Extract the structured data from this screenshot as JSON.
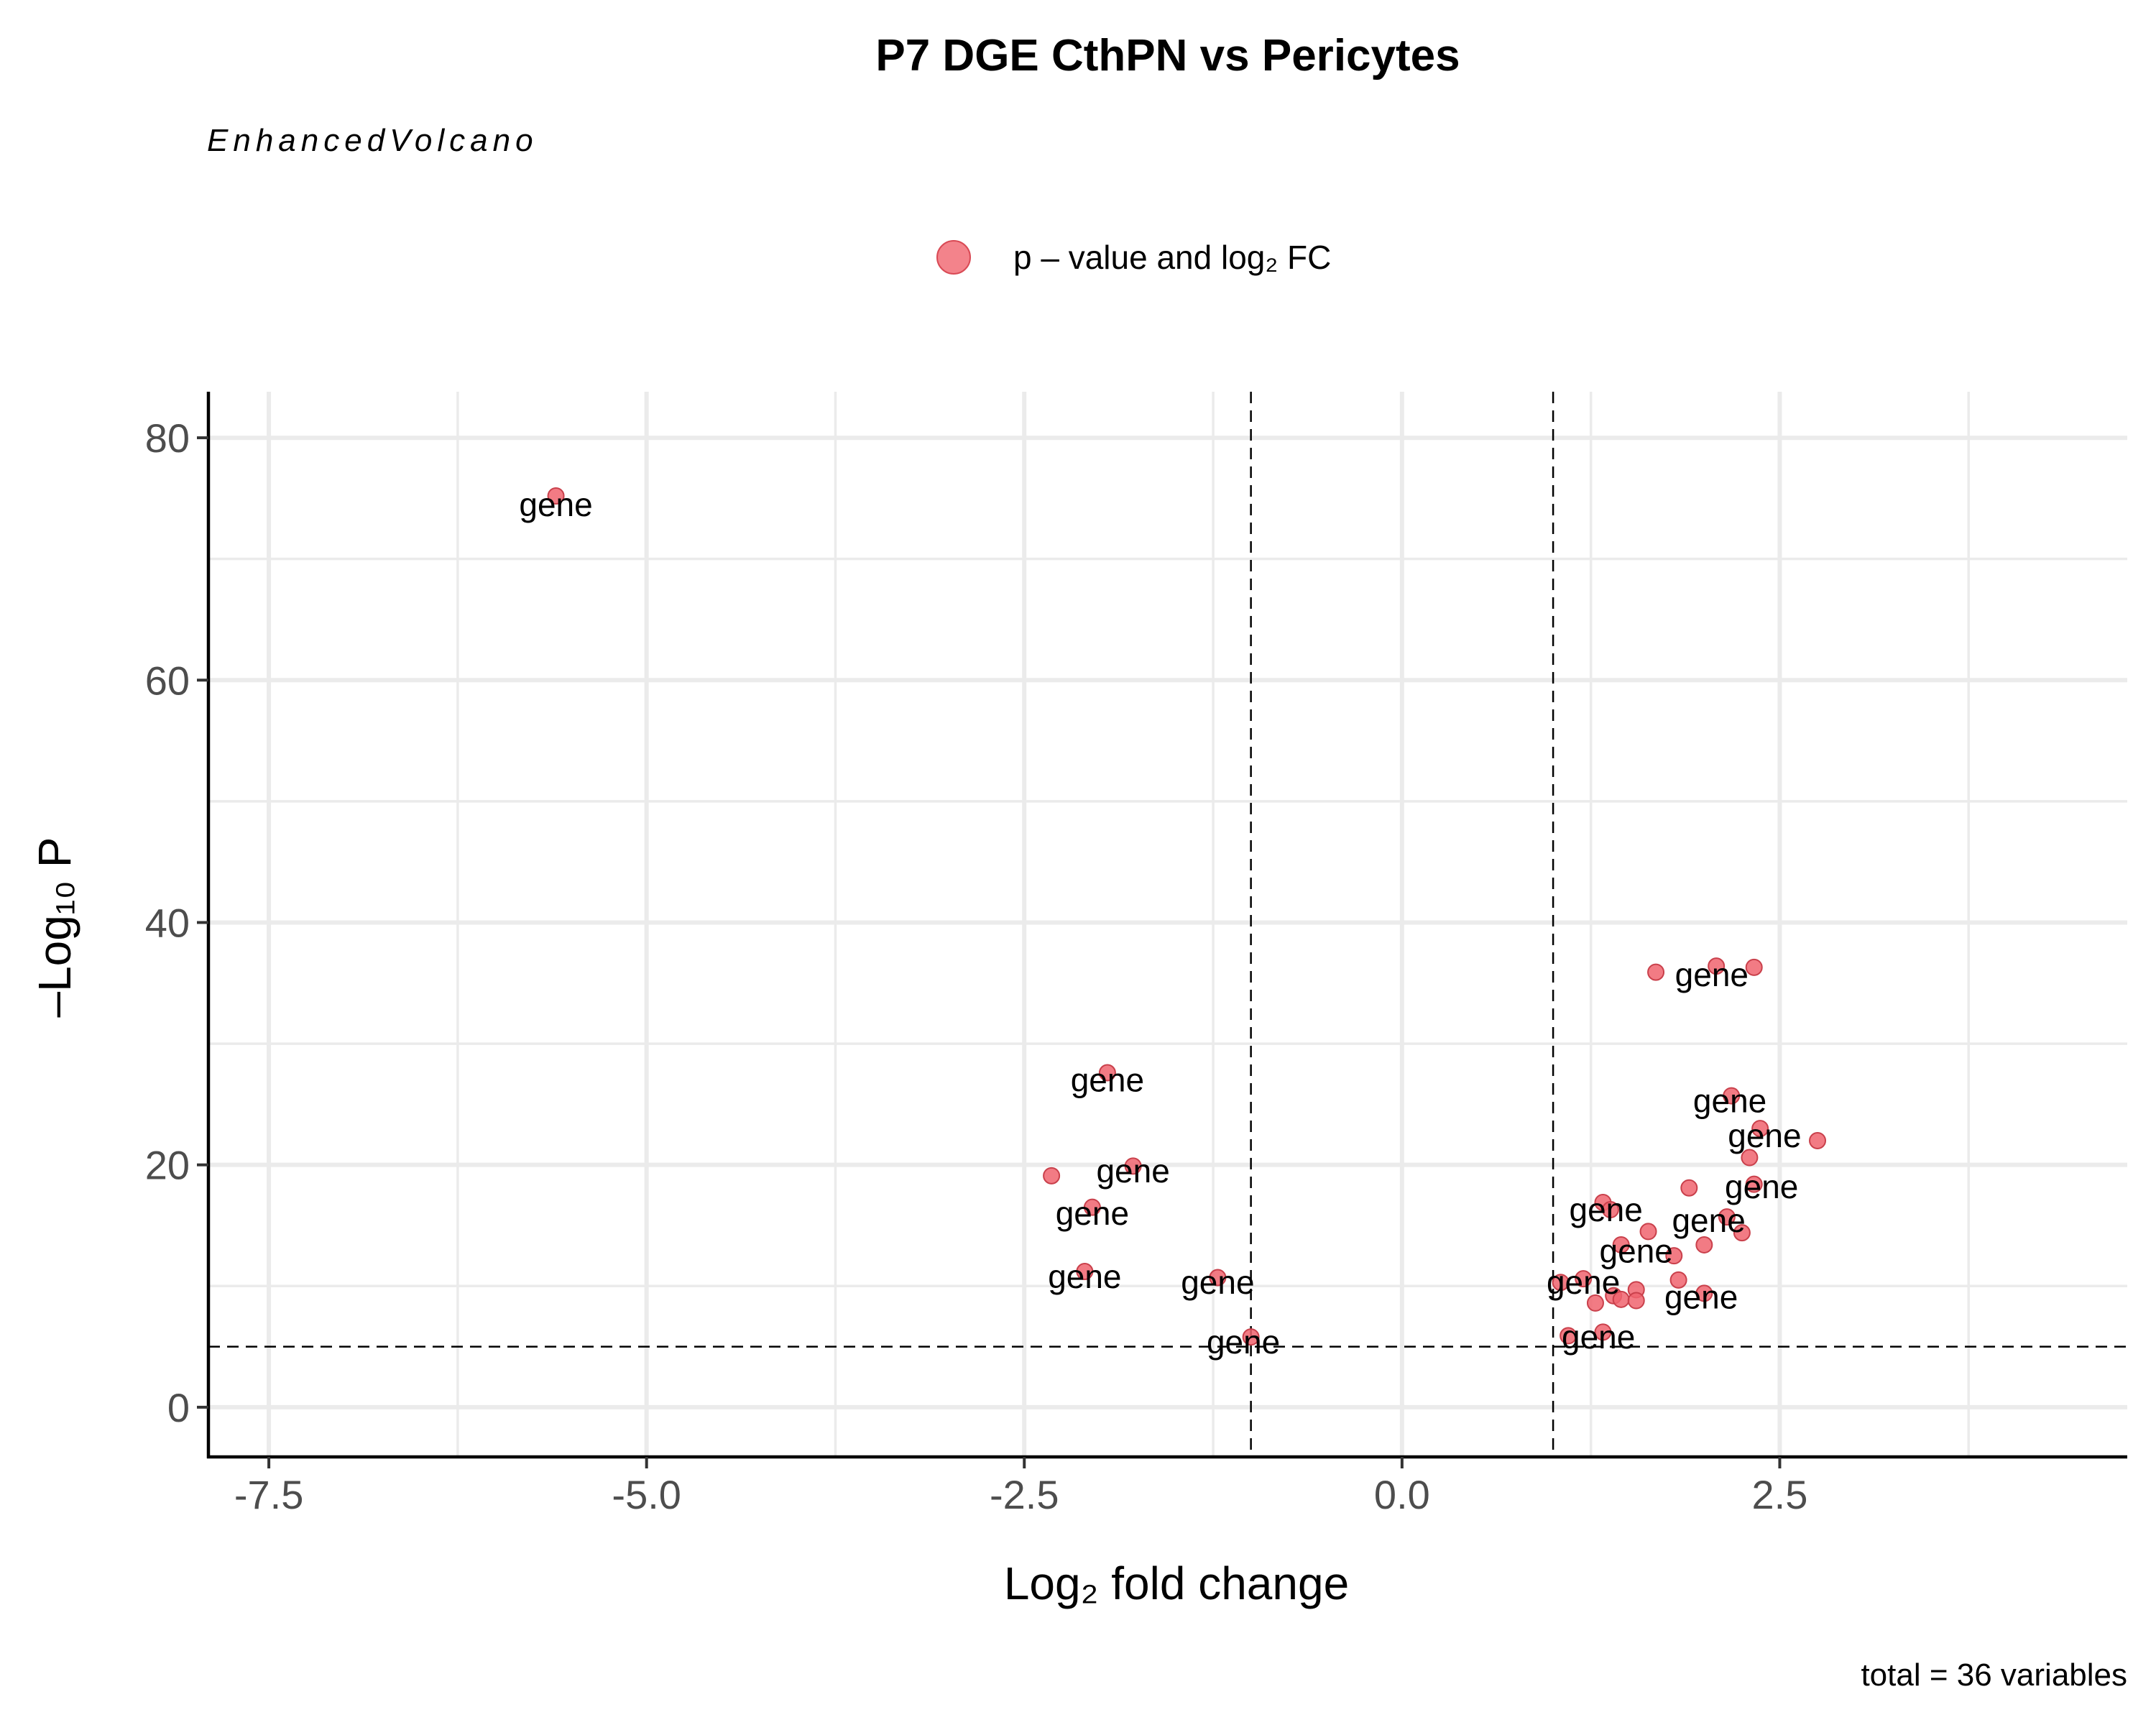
{
  "chart_data": {
    "type": "scatter",
    "title": "P7 DGE CthPN vs Pericytes",
    "subtitle": "EnhancedVolcano",
    "legend": {
      "position": "top",
      "entries": [
        {
          "label": "p – value and log₂ FC",
          "color": "#F0646E"
        }
      ]
    },
    "xlabel": "Log₂ fold change",
    "ylabel": "–Log₁₀ P",
    "xlim": [
      -7.9,
      4.8
    ],
    "ylim": [
      -4.1,
      83.8
    ],
    "xticks": [
      -7.5,
      -5.0,
      -2.5,
      0.0,
      2.5
    ],
    "xtick_labels": [
      "-7.5",
      "-5.0",
      "-2.5",
      "0.0",
      "2.5"
    ],
    "yticks": [
      0,
      20,
      40,
      60,
      80
    ],
    "ytick_labels": [
      "0",
      "20",
      "40",
      "60",
      "80"
    ],
    "grid": true,
    "cutoffs": {
      "fold_change": [
        -1,
        1
      ],
      "p_value_log10": 5
    },
    "point_color": "#F0646E",
    "points": [
      {
        "x": -5.6,
        "y": 75.2
      },
      {
        "x": -1.95,
        "y": 27.6
      },
      {
        "x": -1.78,
        "y": 19.9
      },
      {
        "x": -2.32,
        "y": 19.1
      },
      {
        "x": -2.05,
        "y": 16.5
      },
      {
        "x": -2.1,
        "y": 11.2
      },
      {
        "x": -1.22,
        "y": 10.7
      },
      {
        "x": -1.0,
        "y": 5.8
      },
      {
        "x": 1.68,
        "y": 35.9
      },
      {
        "x": 2.08,
        "y": 36.4
      },
      {
        "x": 2.33,
        "y": 36.3
      },
      {
        "x": 2.18,
        "y": 25.7
      },
      {
        "x": 2.37,
        "y": 23.0
      },
      {
        "x": 2.75,
        "y": 22.0
      },
      {
        "x": 2.3,
        "y": 20.6
      },
      {
        "x": 1.9,
        "y": 18.1
      },
      {
        "x": 2.33,
        "y": 18.4
      },
      {
        "x": 1.33,
        "y": 16.9
      },
      {
        "x": 1.38,
        "y": 16.3
      },
      {
        "x": 2.15,
        "y": 15.7
      },
      {
        "x": 1.63,
        "y": 14.5
      },
      {
        "x": 2.25,
        "y": 14.4
      },
      {
        "x": 1.45,
        "y": 13.4
      },
      {
        "x": 2.0,
        "y": 13.4
      },
      {
        "x": 1.8,
        "y": 12.5
      },
      {
        "x": 1.2,
        "y": 10.6
      },
      {
        "x": 1.05,
        "y": 10.3
      },
      {
        "x": 1.83,
        "y": 10.5
      },
      {
        "x": 1.55,
        "y": 9.7
      },
      {
        "x": 1.4,
        "y": 9.2
      },
      {
        "x": 1.45,
        "y": 8.9
      },
      {
        "x": 2.0,
        "y": 9.4
      },
      {
        "x": 1.28,
        "y": 8.6
      },
      {
        "x": 1.55,
        "y": 8.8
      },
      {
        "x": 1.1,
        "y": 5.9
      },
      {
        "x": 1.33,
        "y": 6.2
      }
    ],
    "labels": [
      {
        "text": "gene",
        "x": -5.6,
        "y": 74.5
      },
      {
        "text": "gene",
        "x": -1.95,
        "y": 27.0
      },
      {
        "text": "gene",
        "x": -1.78,
        "y": 19.5
      },
      {
        "text": "gene",
        "x": -2.05,
        "y": 16.0
      },
      {
        "text": "gene",
        "x": -2.1,
        "y": 10.8
      },
      {
        "text": "gene",
        "x": -1.22,
        "y": 10.3
      },
      {
        "text": "gene",
        "x": -1.05,
        "y": 5.4
      },
      {
        "text": "gene",
        "x": 2.05,
        "y": 35.7
      },
      {
        "text": "gene",
        "x": 2.17,
        "y": 25.3
      },
      {
        "text": "gene",
        "x": 2.4,
        "y": 22.4
      },
      {
        "text": "gene",
        "x": 2.38,
        "y": 18.2
      },
      {
        "text": "gene",
        "x": 1.35,
        "y": 16.3
      },
      {
        "text": "gene",
        "x": 2.03,
        "y": 15.4
      },
      {
        "text": "gene",
        "x": 1.55,
        "y": 12.9
      },
      {
        "text": "gene",
        "x": 1.2,
        "y": 10.3
      },
      {
        "text": "gene",
        "x": 1.98,
        "y": 9.1
      },
      {
        "text": "gene",
        "x": 1.3,
        "y": 5.8
      }
    ],
    "caption": "total = 36 variables"
  }
}
